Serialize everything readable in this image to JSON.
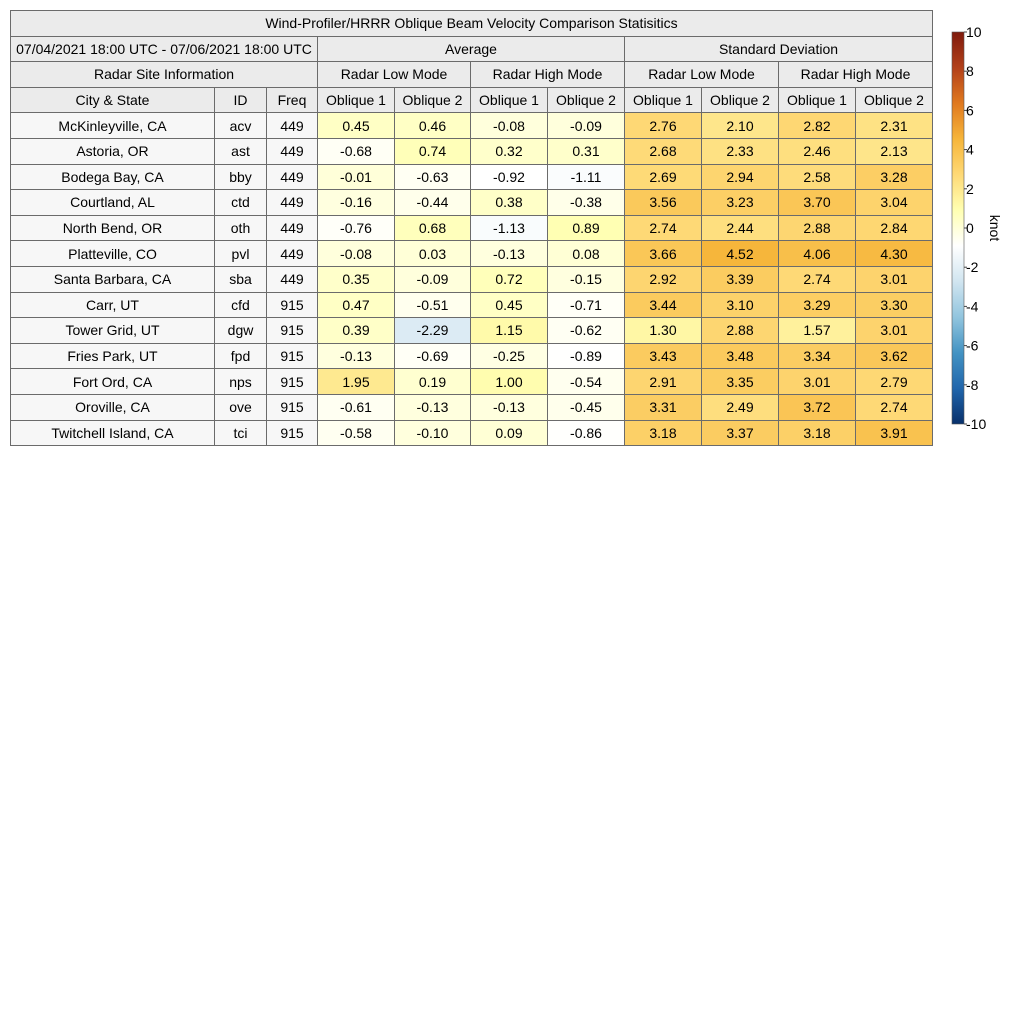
{
  "chart_data": {
    "type": "table",
    "title": "Wind-Profiler/HRRR Oblique Beam Velocity Comparison Statisitics",
    "period": "07/04/2021 18:00 UTC - 07/06/2021 18:00 UTC",
    "group_headers": [
      "Average",
      "Standard Deviation"
    ],
    "site_info_header": "Radar Site Information",
    "mode_headers": [
      "Radar Low Mode",
      "Radar High Mode",
      "Radar Low Mode",
      "Radar High Mode"
    ],
    "column_headers": [
      "City & State",
      "ID",
      "Freq",
      "Oblique 1",
      "Oblique 2",
      "Oblique 1",
      "Oblique 2",
      "Oblique 1",
      "Oblique 2",
      "Oblique 1",
      "Oblique 2"
    ],
    "rows": [
      {
        "city": "McKinleyville, CA",
        "id": "acv",
        "freq": "449",
        "values": [
          "0.45",
          "0.46",
          "-0.08",
          "-0.09",
          "2.76",
          "2.10",
          "2.82",
          "2.31"
        ]
      },
      {
        "city": "Astoria, OR",
        "id": "ast",
        "freq": "449",
        "values": [
          "-0.68",
          "0.74",
          "0.32",
          "0.31",
          "2.68",
          "2.33",
          "2.46",
          "2.13"
        ]
      },
      {
        "city": "Bodega Bay, CA",
        "id": "bby",
        "freq": "449",
        "values": [
          "-0.01",
          "-0.63",
          "-0.92",
          "-1.11",
          "2.69",
          "2.94",
          "2.58",
          "3.28"
        ]
      },
      {
        "city": "Courtland, AL",
        "id": "ctd",
        "freq": "449",
        "values": [
          "-0.16",
          "-0.44",
          "0.38",
          "-0.38",
          "3.56",
          "3.23",
          "3.70",
          "3.04"
        ]
      },
      {
        "city": "North Bend, OR",
        "id": "oth",
        "freq": "449",
        "values": [
          "-0.76",
          "0.68",
          "-1.13",
          "0.89",
          "2.74",
          "2.44",
          "2.88",
          "2.84"
        ]
      },
      {
        "city": "Platteville, CO",
        "id": "pvl",
        "freq": "449",
        "values": [
          "-0.08",
          "0.03",
          "-0.13",
          "0.08",
          "3.66",
          "4.52",
          "4.06",
          "4.30"
        ]
      },
      {
        "city": "Santa Barbara, CA",
        "id": "sba",
        "freq": "449",
        "values": [
          "0.35",
          "-0.09",
          "0.72",
          "-0.15",
          "2.92",
          "3.39",
          "2.74",
          "3.01"
        ]
      },
      {
        "city": "Carr, UT",
        "id": "cfd",
        "freq": "915",
        "values": [
          "0.47",
          "-0.51",
          "0.45",
          "-0.71",
          "3.44",
          "3.10",
          "3.29",
          "3.30"
        ]
      },
      {
        "city": "Tower Grid, UT",
        "id": "dgw",
        "freq": "915",
        "values": [
          "0.39",
          "-2.29",
          "1.15",
          "-0.62",
          "1.30",
          "2.88",
          "1.57",
          "3.01"
        ]
      },
      {
        "city": "Fries Park, UT",
        "id": "fpd",
        "freq": "915",
        "values": [
          "-0.13",
          "-0.69",
          "-0.25",
          "-0.89",
          "3.43",
          "3.48",
          "3.34",
          "3.62"
        ]
      },
      {
        "city": "Fort Ord, CA",
        "id": "nps",
        "freq": "915",
        "values": [
          "1.95",
          "0.19",
          "1.00",
          "-0.54",
          "2.91",
          "3.35",
          "3.01",
          "2.79"
        ]
      },
      {
        "city": "Oroville, CA",
        "id": "ove",
        "freq": "915",
        "values": [
          "-0.61",
          "-0.13",
          "-0.13",
          "-0.45",
          "3.31",
          "2.49",
          "3.72",
          "2.74"
        ]
      },
      {
        "city": "Twitchell Island, CA",
        "id": "tci",
        "freq": "915",
        "values": [
          "-0.58",
          "-0.10",
          "0.09",
          "-0.86",
          "3.18",
          "3.37",
          "3.18",
          "3.91"
        ]
      }
    ],
    "colorbar": {
      "label": "knot",
      "range": [
        -10,
        10
      ],
      "ticks": [
        "10",
        "8",
        "6",
        "4",
        "2",
        "0",
        "-2",
        "-4",
        "-6",
        "-8",
        "-10"
      ],
      "colors": [
        "#08306b",
        "#2166ac",
        "#4393c3",
        "#92c5de",
        "#d1e5f0",
        "#ffffff",
        "#ffffb2",
        "#fed976",
        "#f6b53a",
        "#e0791f",
        "#b2401a",
        "#7f1a0c"
      ]
    }
  }
}
